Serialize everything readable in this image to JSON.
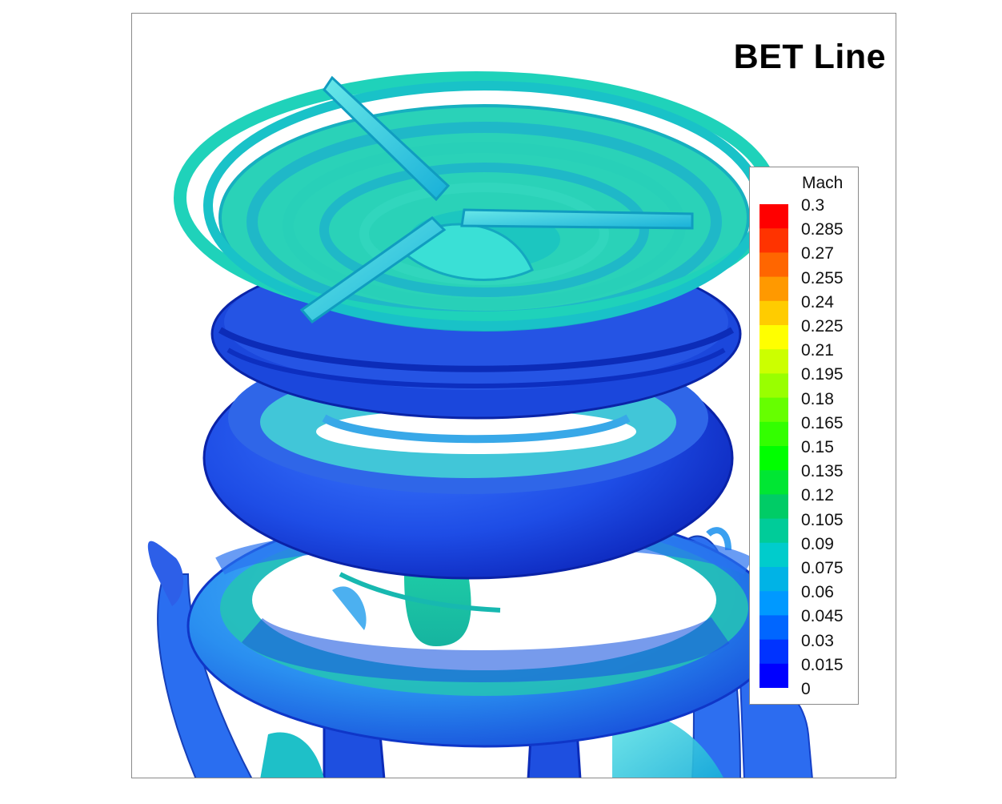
{
  "title": "BET Line",
  "legend": {
    "variable": "Mach",
    "min": 0,
    "max": 0.3,
    "ticks": [
      "0.3",
      "0.285",
      "0.27",
      "0.255",
      "0.24",
      "0.225",
      "0.21",
      "0.195",
      "0.18",
      "0.165",
      "0.15",
      "0.135",
      "0.12",
      "0.105",
      "0.09",
      "0.075",
      "0.06",
      "0.045",
      "0.03",
      "0.015",
      "0"
    ],
    "colors": [
      "#ff0000",
      "#ff3300",
      "#ff6600",
      "#ff9900",
      "#ffcc00",
      "#ffff00",
      "#ccff00",
      "#99ff00",
      "#66ff00",
      "#33ff00",
      "#00ff00",
      "#00e633",
      "#00cc66",
      "#00cc99",
      "#00cccc",
      "#00b3e6",
      "#0099ff",
      "#0066ff",
      "#0033ff",
      "#0000ff"
    ]
  },
  "scene_colors": {
    "cyan_green": "#27d8b4",
    "teal": "#1fc7c9",
    "light_blue": "#1aa8e8",
    "blue": "#1e5ce8",
    "dark_blue": "#0c2fd8"
  }
}
